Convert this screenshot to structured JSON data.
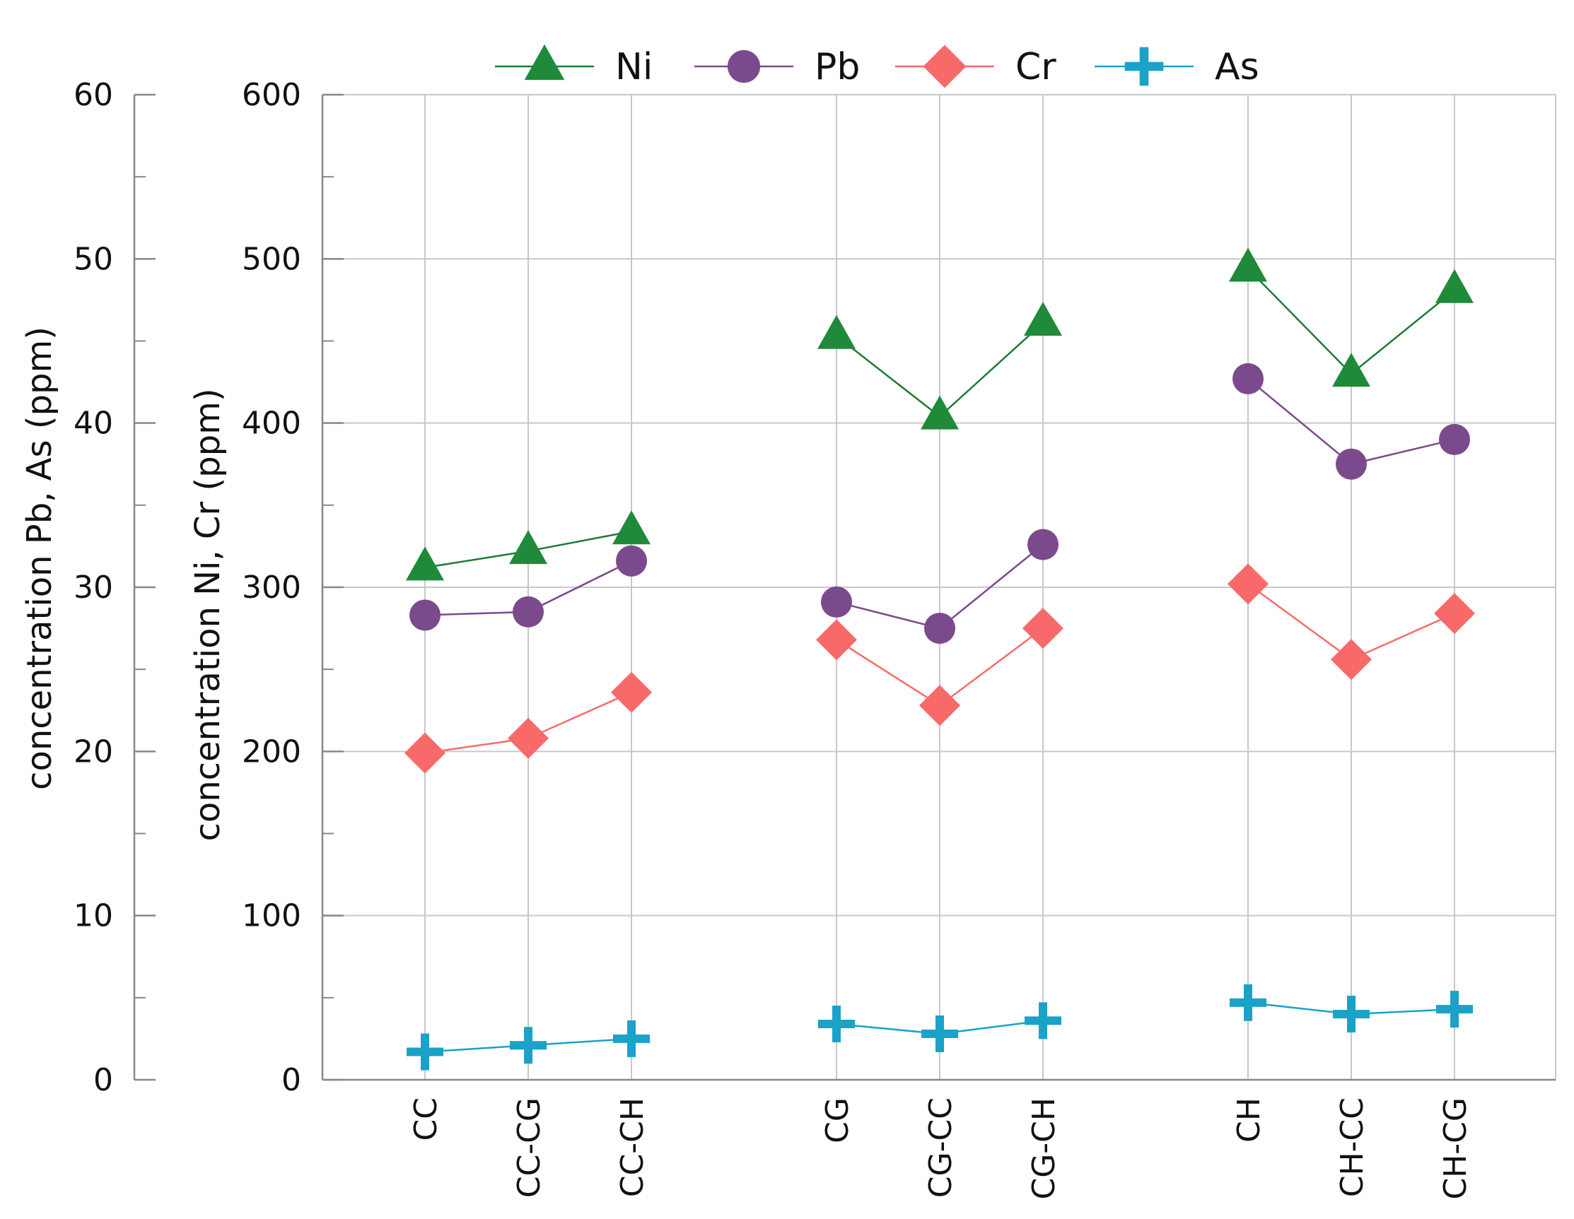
{
  "chart_data": {
    "type": "line",
    "categories": [
      "CC",
      "CC-CG",
      "CC-CH",
      "CG",
      "CG-CC",
      "CG-CH",
      "CH",
      "CH-CC",
      "CH-CG"
    ],
    "groups": [
      [
        "CC",
        "CC-CG",
        "CC-CH"
      ],
      [
        "CG",
        "CG-CC",
        "CG-CH"
      ],
      [
        "CH",
        "CH-CC",
        "CH-CG"
      ]
    ],
    "left_axis": {
      "label": "concentration Pb, As (ppm)",
      "ylim": [
        0,
        60
      ],
      "ticks": [
        0,
        10,
        20,
        30,
        40,
        50,
        60
      ]
    },
    "right_axis": {
      "label": "concentration Ni, Cr (ppm)",
      "ylim": [
        0,
        600
      ],
      "ticks": [
        0,
        100,
        200,
        300,
        400,
        500,
        600
      ]
    },
    "series": [
      {
        "name": "Ni",
        "axis": "NiCr",
        "marker": "triangle",
        "color": "#1e8a3a",
        "line_color": "#1e7a35",
        "values": [
          312,
          322,
          334,
          453,
          404,
          461,
          494,
          430,
          481
        ]
      },
      {
        "name": "Pb",
        "axis": "PbAs",
        "marker": "circle",
        "color": "#7b4a8c",
        "line_color": "#7b4a8c",
        "values": [
          28.3,
          28.5,
          31.6,
          29.1,
          27.5,
          32.6,
          42.7,
          37.5,
          39.0
        ]
      },
      {
        "name": "Cr",
        "axis": "NiCr",
        "marker": "diamond",
        "color": "#f86a6a",
        "line_color": "#f86a6a",
        "values": [
          199,
          208,
          236,
          268,
          228,
          275,
          302,
          256,
          284
        ]
      },
      {
        "name": "As",
        "axis": "PbAs",
        "marker": "plus",
        "color": "#1aa2c8",
        "line_color": "#1aa2c8",
        "values": [
          1.7,
          2.1,
          2.5,
          3.4,
          2.8,
          3.6,
          4.7,
          4.0,
          4.3
        ]
      }
    ],
    "legend_position": "top",
    "grid": true
  }
}
